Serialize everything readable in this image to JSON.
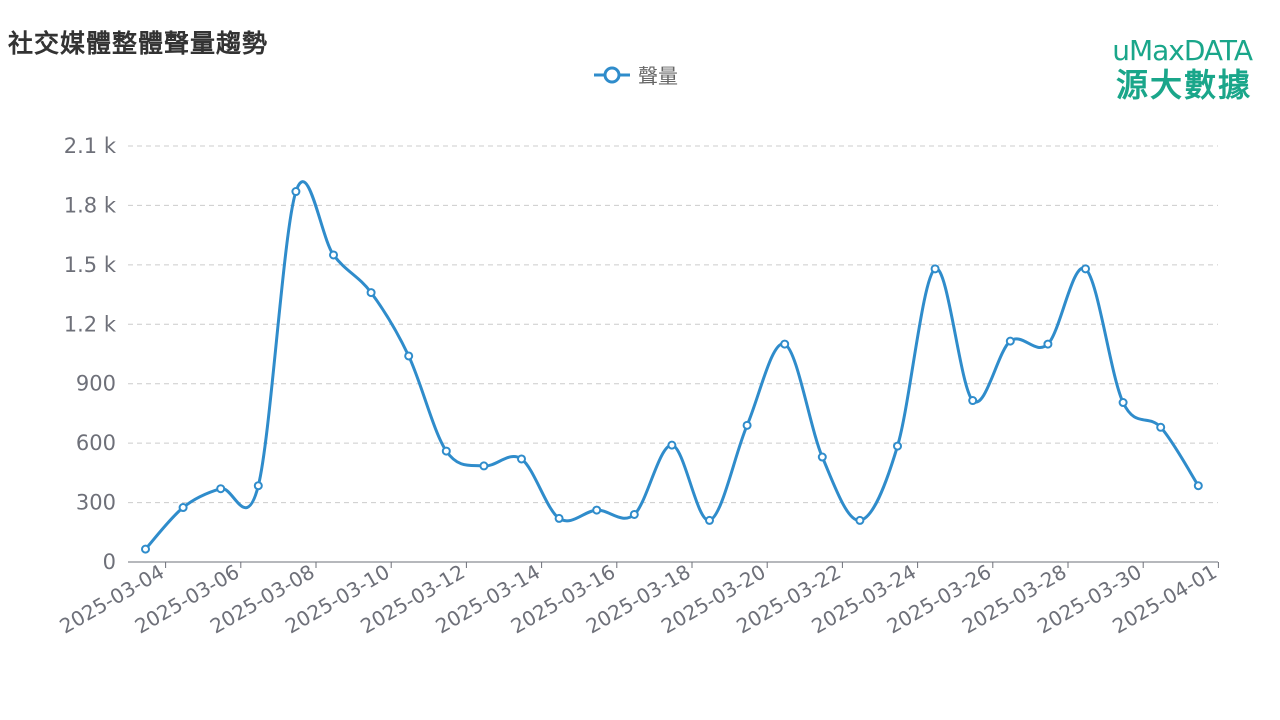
{
  "title": "社交媒體整體聲量趨勢",
  "logo": {
    "top": "uMaxDATA",
    "bottom": "源大數據"
  },
  "colors": {
    "series": "#2f8ccb",
    "logo": "#1aa68a",
    "grid": "#cccccc",
    "axis": "#6e7079"
  },
  "chart_data": {
    "type": "line",
    "title": "社交媒體整體聲量趨勢",
    "xlabel": "",
    "ylabel": "",
    "ylim": [
      0,
      2100
    ],
    "y_ticks": [
      0,
      300,
      600,
      900,
      1200,
      1500,
      1800,
      2100
    ],
    "y_tick_labels": [
      "0",
      "300",
      "600",
      "900",
      "1.2 k",
      "1.5 k",
      "1.8 k",
      "2.1 k"
    ],
    "x_tick_labels": [
      "2025-03-04",
      "2025-03-06",
      "2025-03-08",
      "2025-03-10",
      "2025-03-12",
      "2025-03-14",
      "2025-03-16",
      "2025-03-18",
      "2025-03-20",
      "2025-03-22",
      "2025-03-24",
      "2025-03-26",
      "2025-03-28",
      "2025-03-30",
      "2025-04-01"
    ],
    "x": [
      "2025-03-04",
      "2025-03-05",
      "2025-03-06",
      "2025-03-07",
      "2025-03-08",
      "2025-03-09",
      "2025-03-10",
      "2025-03-11",
      "2025-03-12",
      "2025-03-13",
      "2025-03-14",
      "2025-03-15",
      "2025-03-16",
      "2025-03-17",
      "2025-03-18",
      "2025-03-19",
      "2025-03-20",
      "2025-03-21",
      "2025-03-22",
      "2025-03-23",
      "2025-03-24",
      "2025-03-25",
      "2025-03-26",
      "2025-03-27",
      "2025-03-28",
      "2025-03-29",
      "2025-03-30",
      "2025-03-31",
      "2025-04-01"
    ],
    "grid": true,
    "legend_position": "top-center",
    "series": [
      {
        "name": "聲量",
        "values": [
          65,
          275,
          370,
          385,
          1870,
          1550,
          1360,
          1040,
          560,
          485,
          520,
          220,
          262,
          240,
          590,
          210,
          690,
          1100,
          530,
          210,
          585,
          1480,
          815,
          1115,
          1100,
          1480,
          805,
          680,
          385
        ]
      }
    ]
  }
}
